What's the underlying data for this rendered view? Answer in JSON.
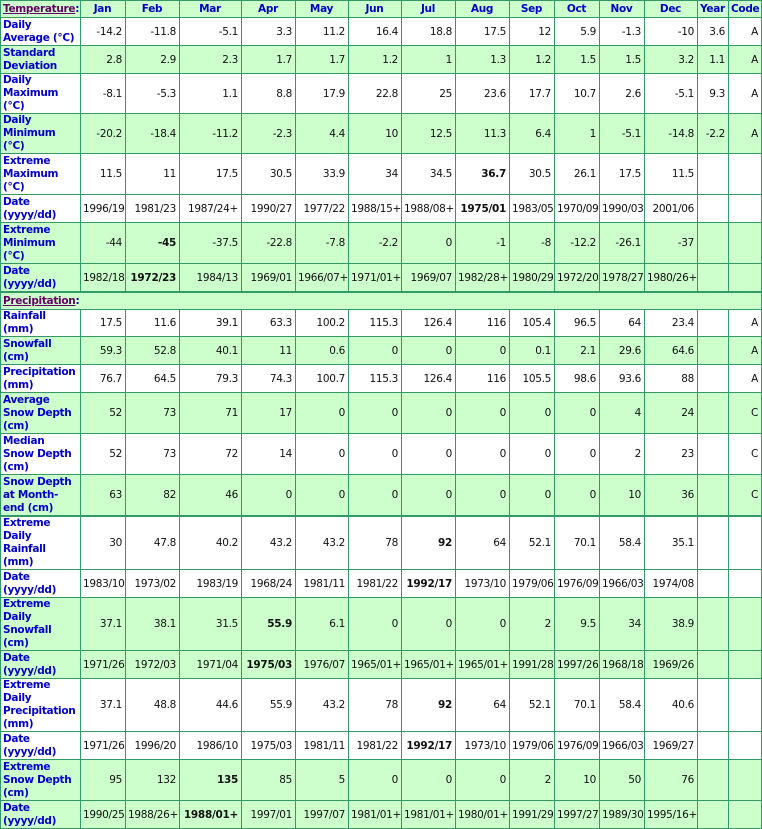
{
  "colors": {
    "green_row": "#ccffcc",
    "border": "#339966",
    "label": "#0000cc",
    "section_link": "#660066"
  },
  "temperature": {
    "heading": "Temperature",
    "columns": [
      "Jan",
      "Feb",
      "Mar",
      "Apr",
      "May",
      "Jun",
      "Jul",
      "Aug",
      "Sep",
      "Oct",
      "Nov",
      "Dec",
      "Year",
      "Code"
    ],
    "rows": [
      {
        "label": "Daily Average (°C)",
        "shade": "w",
        "cells": [
          "-14.2",
          "-11.8",
          "-5.1",
          "3.3",
          "11.2",
          "16.4",
          "18.8",
          "17.5",
          "12",
          "5.9",
          "-1.3",
          "-10",
          "3.6",
          "A"
        ],
        "bold": []
      },
      {
        "label": "Standard Deviation",
        "shade": "g",
        "cells": [
          "2.8",
          "2.9",
          "2.3",
          "1.7",
          "1.7",
          "1.2",
          "1",
          "1.3",
          "1.2",
          "1.5",
          "1.5",
          "3.2",
          "1.1",
          "A"
        ],
        "bold": []
      },
      {
        "label": "Daily Maximum (°C)",
        "shade": "w",
        "cells": [
          "-8.1",
          "-5.3",
          "1.1",
          "8.8",
          "17.9",
          "22.8",
          "25",
          "23.6",
          "17.7",
          "10.7",
          "2.6",
          "-5.1",
          "9.3",
          "A"
        ],
        "bold": []
      },
      {
        "label": "Daily Minimum (°C)",
        "shade": "g",
        "cells": [
          "-20.2",
          "-18.4",
          "-11.2",
          "-2.3",
          "4.4",
          "10",
          "12.5",
          "11.3",
          "6.4",
          "1",
          "-5.1",
          "-14.8",
          "-2.2",
          "A"
        ],
        "bold": []
      },
      {
        "label": "Extreme Maximum (°C)",
        "shade": "w",
        "cells": [
          "11.5",
          "11",
          "17.5",
          "30.5",
          "33.9",
          "34",
          "34.5",
          "36.7",
          "30.5",
          "26.1",
          "17.5",
          "11.5",
          "",
          ""
        ],
        "bold": [
          7
        ]
      },
      {
        "label": "Date (yyyy/dd)",
        "shade": "w",
        "cells": [
          "1996/19",
          "1981/23",
          "1987/24+",
          "1990/27",
          "1977/22",
          "1988/15+",
          "1988/08+",
          "1975/01",
          "1983/05",
          "1970/09",
          "1990/03",
          "2001/06",
          "",
          ""
        ],
        "bold": [
          7
        ]
      },
      {
        "label": "Extreme Minimum (°C)",
        "shade": "g",
        "cells": [
          "-44",
          "-45",
          "-37.5",
          "-22.8",
          "-7.8",
          "-2.2",
          "0",
          "-1",
          "-8",
          "-12.2",
          "-26.1",
          "-37",
          "",
          ""
        ],
        "bold": [
          1
        ]
      },
      {
        "label": "Date (yyyy/dd)",
        "shade": "g",
        "thick": true,
        "cells": [
          "1982/18",
          "1972/23",
          "1984/13",
          "1969/01",
          "1966/07+",
          "1971/01+",
          "1969/07",
          "1982/28+",
          "1980/29",
          "1972/20",
          "1978/27",
          "1980/26+",
          "",
          ""
        ],
        "bold": [
          1
        ]
      }
    ]
  },
  "precipitation": {
    "heading": "Precipitation",
    "rows": [
      {
        "label": "Rainfall (mm)",
        "shade": "w",
        "cells": [
          "17.5",
          "11.6",
          "39.1",
          "63.3",
          "100.2",
          "115.3",
          "126.4",
          "116",
          "105.4",
          "96.5",
          "64",
          "23.4",
          "",
          "A"
        ],
        "bold": []
      },
      {
        "label": "Snowfall (cm)",
        "shade": "g",
        "cells": [
          "59.3",
          "52.8",
          "40.1",
          "11",
          "0.6",
          "0",
          "0",
          "0",
          "0.1",
          "2.1",
          "29.6",
          "64.6",
          "",
          "A"
        ],
        "bold": []
      },
      {
        "label": "Precipitation (mm)",
        "shade": "w",
        "cells": [
          "76.7",
          "64.5",
          "79.3",
          "74.3",
          "100.7",
          "115.3",
          "126.4",
          "116",
          "105.5",
          "98.6",
          "93.6",
          "88",
          "",
          "A"
        ],
        "bold": []
      },
      {
        "label": "Average Snow Depth (cm)",
        "shade": "g",
        "cells": [
          "52",
          "73",
          "71",
          "17",
          "0",
          "0",
          "0",
          "0",
          "0",
          "0",
          "4",
          "24",
          "",
          "C"
        ],
        "bold": []
      },
      {
        "label": "Median Snow Depth (cm)",
        "shade": "w",
        "cells": [
          "52",
          "73",
          "72",
          "14",
          "0",
          "0",
          "0",
          "0",
          "0",
          "0",
          "2",
          "23",
          "",
          "C"
        ],
        "bold": []
      },
      {
        "label": "Snow Depth at Month-end (cm)",
        "shade": "g",
        "thick": true,
        "cells": [
          "63",
          "82",
          "46",
          "0",
          "0",
          "0",
          "0",
          "0",
          "0",
          "0",
          "10",
          "36",
          "",
          "C"
        ],
        "bold": []
      },
      {
        "label": "Extreme Daily Rainfall (mm)",
        "shade": "w",
        "cells": [
          "30",
          "47.8",
          "40.2",
          "43.2",
          "43.2",
          "78",
          "92",
          "64",
          "52.1",
          "70.1",
          "58.4",
          "35.1",
          "",
          ""
        ],
        "bold": [
          6
        ]
      },
      {
        "label": "Date (yyyy/dd)",
        "shade": "w",
        "cells": [
          "1983/10",
          "1973/02",
          "1983/19",
          "1968/24",
          "1981/11",
          "1981/22",
          "1992/17",
          "1973/10",
          "1979/06",
          "1976/09",
          "1966/03",
          "1974/08",
          "",
          ""
        ],
        "bold": [
          6
        ]
      },
      {
        "label": "Extreme Daily Snowfall (cm)",
        "shade": "g",
        "cells": [
          "37.1",
          "38.1",
          "31.5",
          "55.9",
          "6.1",
          "0",
          "0",
          "0",
          "2",
          "9.5",
          "34",
          "38.9",
          "",
          ""
        ],
        "bold": [
          3
        ]
      },
      {
        "label": "Date (yyyy/dd)",
        "shade": "g",
        "cells": [
          "1971/26",
          "1972/03",
          "1971/04",
          "1975/03",
          "1976/07",
          "1965/01+",
          "1965/01+",
          "1965/01+",
          "1991/28",
          "1997/26",
          "1968/18",
          "1969/26",
          "",
          ""
        ],
        "bold": [
          3
        ]
      },
      {
        "label": "Extreme Daily Precipitation (mm)",
        "shade": "w",
        "cells": [
          "37.1",
          "48.8",
          "44.6",
          "55.9",
          "43.2",
          "78",
          "92",
          "64",
          "52.1",
          "70.1",
          "58.4",
          "40.6",
          "",
          ""
        ],
        "bold": [
          6
        ]
      },
      {
        "label": "Date (yyyy/dd)",
        "shade": "w",
        "cells": [
          "1971/26",
          "1996/20",
          "1986/10",
          "1975/03",
          "1981/11",
          "1981/22",
          "1992/17",
          "1973/10",
          "1979/06",
          "1976/09",
          "1966/03",
          "1969/27",
          "",
          ""
        ],
        "bold": [
          6
        ]
      },
      {
        "label": "Extreme Snow Depth (cm)",
        "shade": "g",
        "cells": [
          "95",
          "132",
          "135",
          "85",
          "5",
          "0",
          "0",
          "0",
          "2",
          "10",
          "50",
          "76",
          "",
          ""
        ],
        "bold": [
          2
        ]
      },
      {
        "label": "Date (yyyy/dd)",
        "shade": "g",
        "cells": [
          "1990/25",
          "1988/26+",
          "1988/01+",
          "1997/01",
          "1997/07",
          "1981/01+",
          "1981/01+",
          "1980/01+",
          "1991/29",
          "1997/27",
          "1989/30",
          "1995/16+",
          "",
          ""
        ],
        "bold": [
          2
        ]
      }
    ]
  }
}
